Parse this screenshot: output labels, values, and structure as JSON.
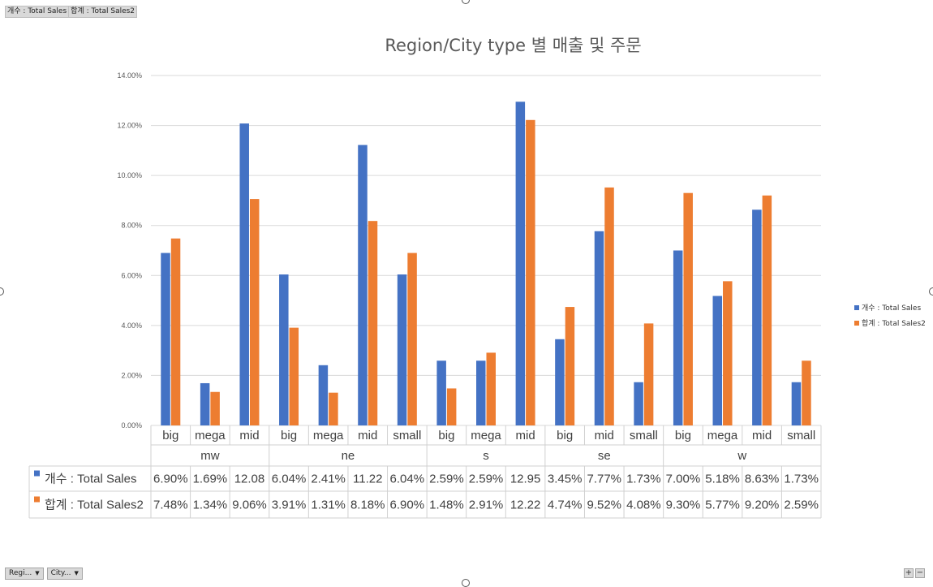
{
  "field_buttons": [
    "개수 : Total Sales",
    "합계 : Total Sales2"
  ],
  "filter_buttons": [
    {
      "label": "Regi..."
    },
    {
      "label": "City..."
    }
  ],
  "zoom": {
    "plus": "+",
    "minus": "−"
  },
  "colors": {
    "series1": "#4472c4",
    "series2": "#ed7d31",
    "grid": "#d9d9d9",
    "table_border": "#d0d0d0"
  },
  "chart_data": {
    "type": "bar",
    "title": "Region/City type 별 매출 및 주문",
    "ylim": [
      0,
      14
    ],
    "y_ticks": [
      "0.00%",
      "2.00%",
      "4.00%",
      "6.00%",
      "8.00%",
      "10.00%",
      "12.00%",
      "14.00%"
    ],
    "grid": true,
    "legend_position": "right",
    "groups": [
      {
        "name": "mw",
        "categories": [
          "big",
          "mega",
          "mid"
        ]
      },
      {
        "name": "ne",
        "categories": [
          "big",
          "mega",
          "mid",
          "small"
        ]
      },
      {
        "name": "s",
        "categories": [
          "big",
          "mega",
          "mid"
        ]
      },
      {
        "name": "se",
        "categories": [
          "big",
          "mid",
          "small"
        ]
      },
      {
        "name": "w",
        "categories": [
          "big",
          "mega",
          "mid",
          "small"
        ]
      }
    ],
    "series": [
      {
        "name": "개수 : Total Sales",
        "color": "#4472c4",
        "values": [
          6.9,
          1.69,
          12.08,
          6.04,
          2.41,
          11.22,
          6.04,
          2.59,
          2.59,
          12.95,
          3.45,
          7.77,
          1.73,
          7.0,
          5.18,
          8.63,
          1.73
        ],
        "labels": [
          "6.90%",
          "1.69%",
          "12.08",
          "6.04%",
          "2.41%",
          "11.22",
          "6.04%",
          "2.59%",
          "2.59%",
          "12.95",
          "3.45%",
          "7.77%",
          "1.73%",
          "7.00%",
          "5.18%",
          "8.63%",
          "1.73%"
        ]
      },
      {
        "name": "합계 : Total Sales2",
        "color": "#ed7d31",
        "values": [
          7.48,
          1.34,
          9.06,
          3.91,
          1.31,
          8.18,
          6.9,
          1.48,
          2.91,
          12.22,
          4.74,
          9.52,
          4.08,
          9.3,
          5.77,
          9.2,
          2.59
        ],
        "labels": [
          "7.48%",
          "1.34%",
          "9.06%",
          "3.91%",
          "1.31%",
          "8.18%",
          "6.90%",
          "1.48%",
          "2.91%",
          "12.22",
          "4.74%",
          "9.52%",
          "4.08%",
          "9.30%",
          "5.77%",
          "9.20%",
          "2.59%"
        ]
      }
    ]
  }
}
